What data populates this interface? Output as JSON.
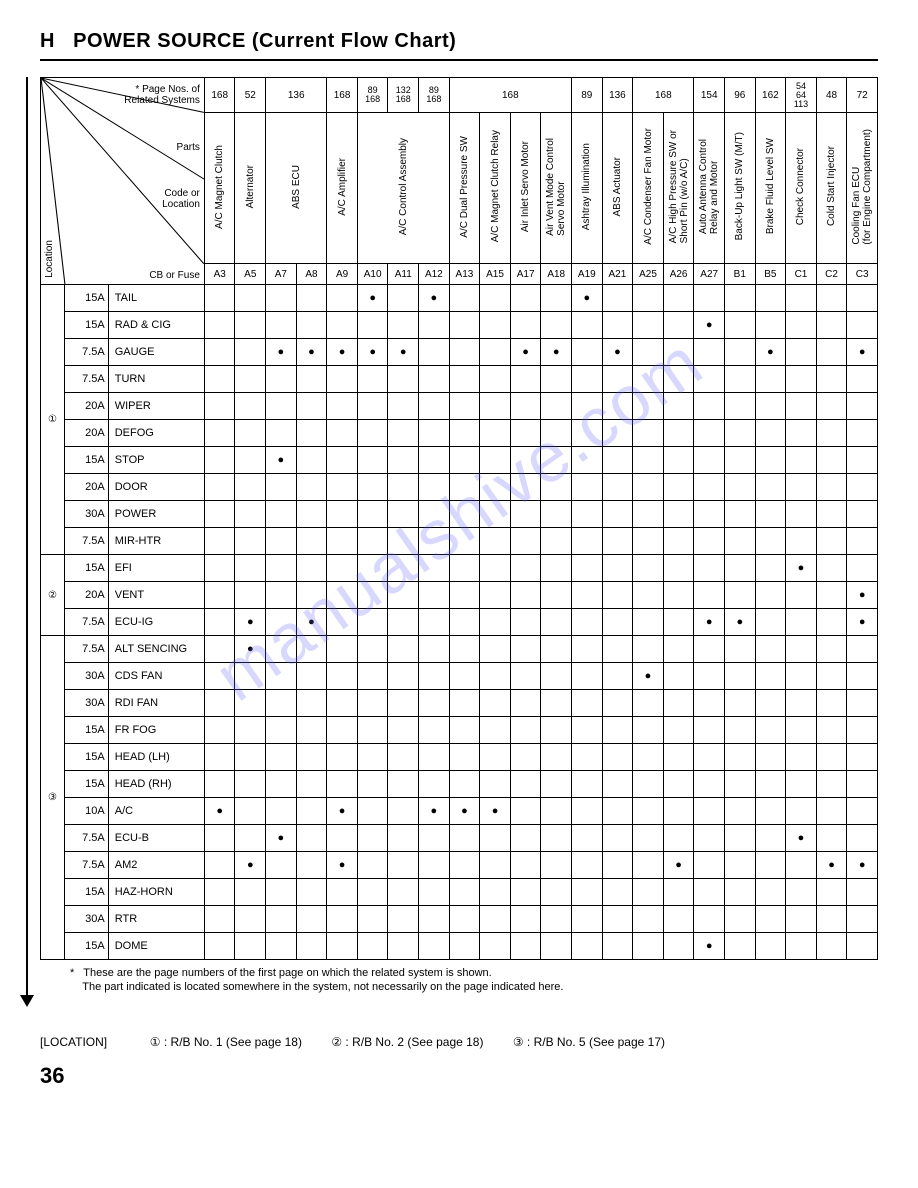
{
  "heading_prefix": "H",
  "heading_title": "POWER SOURCE (Current Flow Chart)",
  "header_labels": {
    "page_nos": "* Page Nos. of\nRelated Systems",
    "parts": "Parts",
    "code_or_location": "Code or\nLocation",
    "location": "Location",
    "cb_or_fuse": "CB or Fuse"
  },
  "columns": [
    {
      "page": "168",
      "label": "A/C Magnet Clutch",
      "code": "A3"
    },
    {
      "page": "52",
      "label": "Alternator",
      "code": "A5"
    },
    {
      "page": "136",
      "span": 2,
      "labels": [
        "ABS ECU"
      ],
      "codes": [
        "A7",
        "A8"
      ]
    },
    {
      "page": "168",
      "label": "A/C Amplifier",
      "code": "A9"
    },
    {
      "page": "89\n168",
      "span": 3,
      "pages_multi": [
        "89",
        "132",
        "89"
      ],
      "pages_multi2": [
        "168",
        "168",
        "168"
      ],
      "labels_single": "A/C Control Assembly",
      "codes": [
        "A10",
        "A11",
        "A12"
      ]
    },
    {
      "page": "168",
      "span": 4,
      "labels": [
        "A/C Dual Pressure SW",
        "A/C Magnet Clutch Relay",
        "Air Inlet Servo Motor",
        "Air Vent Mode Control\nServo Motor"
      ],
      "codes": [
        "A13",
        "A15",
        "A17",
        "A18"
      ]
    },
    {
      "page": "89",
      "label": "Ashtray Illumination",
      "code": "A19"
    },
    {
      "page": "136",
      "label": "ABS Actuator",
      "code": "A21"
    },
    {
      "page": "168",
      "span": 2,
      "labels": [
        "A/C Condenser Fan Motor",
        "A/C High Pressure SW or\nShort Pin (w/o A/C)"
      ],
      "codes": [
        "A25",
        "A26"
      ]
    },
    {
      "page": "154",
      "label": "Auto Antenna Control\nRelay and Motor",
      "code": "A27"
    },
    {
      "page": "96",
      "label": "Back-Up Light SW (M/T)",
      "code": "B1"
    },
    {
      "page": "162",
      "label": "Brake Fluid Level SW",
      "code": "B5"
    },
    {
      "page": "54\n64\n113",
      "label": "Check Connector",
      "code": "C1"
    },
    {
      "page": "48",
      "label": "Cold Start Injector",
      "code": "C2"
    },
    {
      "page": "72",
      "label": "Cooling Fan ECU\n(for Engine Compartment)",
      "code": "C3"
    }
  ],
  "pages_flat": [
    "168",
    "52",
    "136",
    "168",
    "89\n168",
    "132\n168",
    "89\n168",
    "168",
    "89",
    "136",
    "168",
    "154",
    "96",
    "162",
    "54\n64\n113",
    "48",
    "72"
  ],
  "parts_flat": [
    "A/C Magnet Clutch",
    "Alternator",
    "ABS ECU",
    "ABS ECU",
    "A/C Amplifier",
    "A/C Control Assembly",
    "A/C Control Assembly",
    "A/C Control Assembly",
    "A/C Dual Pressure SW",
    "A/C Magnet Clutch Relay",
    "Air Inlet Servo Motor",
    "Air Vent Mode Control\nServo Motor",
    "Ashtray Illumination",
    "ABS Actuator",
    "A/C Condenser Fan Motor",
    "A/C High Pressure SW or\nShort Pin (w/o A/C)",
    "Auto Antenna Control\nRelay and Motor",
    "Back-Up Light SW (M/T)",
    "Brake Fluid Level SW",
    "Check Connector",
    "Cold Start Injector",
    "Cooling Fan ECU\n(for Engine Compartment)"
  ],
  "codes_flat": [
    "A3",
    "A5",
    "A7",
    "A8",
    "A9",
    "A10",
    "A11",
    "A12",
    "A13",
    "A15",
    "A17",
    "A18",
    "A19",
    "A21",
    "A25",
    "A26",
    "A27",
    "B1",
    "B5",
    "C1",
    "C2",
    "C3"
  ],
  "groups": [
    {
      "loc": "①",
      "rows": [
        {
          "amps": "15A",
          "name": "TAIL",
          "dots": [
            "A10",
            "A12",
            "A19"
          ]
        },
        {
          "amps": "15A",
          "name": "RAD & CIG",
          "dots": [
            "A27"
          ]
        },
        {
          "amps": "7.5A",
          "name": "GAUGE",
          "dots": [
            "A7",
            "A8",
            "A9",
            "A10",
            "A11",
            "A17",
            "A18",
            "A21",
            "B5",
            "C3"
          ]
        },
        {
          "amps": "7.5A",
          "name": "TURN",
          "dots": []
        },
        {
          "amps": "20A",
          "name": "WIPER",
          "dots": []
        },
        {
          "amps": "20A",
          "name": "DEFOG",
          "dots": []
        },
        {
          "amps": "15A",
          "name": "STOP",
          "dots": [
            "A7"
          ]
        },
        {
          "amps": "20A",
          "name": "DOOR",
          "dots": []
        },
        {
          "amps": "30A",
          "name": "POWER",
          "dots": []
        },
        {
          "amps": "7.5A",
          "name": "MIR-HTR",
          "dots": []
        }
      ]
    },
    {
      "loc": "②",
      "rows": [
        {
          "amps": "15A",
          "name": "EFI",
          "dots": [
            "C1"
          ]
        },
        {
          "amps": "20A",
          "name": "VENT",
          "dots": [
            "C3"
          ]
        },
        {
          "amps": "7.5A",
          "name": "ECU-IG",
          "dots": [
            "A5",
            "A8",
            "A27",
            "B1",
            "C3"
          ]
        }
      ]
    },
    {
      "loc": "③",
      "rows": [
        {
          "amps": "7.5A",
          "name": "ALT SENCING",
          "dots": [
            "A5"
          ]
        },
        {
          "amps": "30A",
          "name": "CDS FAN",
          "dots": [
            "A25"
          ]
        },
        {
          "amps": "30A",
          "name": "RDI FAN",
          "dots": []
        },
        {
          "amps": "15A",
          "name": "FR FOG",
          "dots": []
        },
        {
          "amps": "15A",
          "name": "HEAD (LH)",
          "dots": []
        },
        {
          "amps": "15A",
          "name": "HEAD (RH)",
          "dots": []
        },
        {
          "amps": "10A",
          "name": "A/C",
          "dots": [
            "A3",
            "A9",
            "A12",
            "A13",
            "A15"
          ]
        },
        {
          "amps": "7.5A",
          "name": "ECU-B",
          "dots": [
            "A7",
            "C1"
          ]
        },
        {
          "amps": "7.5A",
          "name": "AM2",
          "dots": [
            "A5",
            "A9",
            "A26",
            "C2",
            "C3"
          ]
        },
        {
          "amps": "15A",
          "name": "HAZ-HORN",
          "dots": []
        },
        {
          "amps": "30A",
          "name": "RTR",
          "dots": []
        },
        {
          "amps": "15A",
          "name": "DOME",
          "dots": [
            "A27"
          ]
        }
      ]
    }
  ],
  "footnote_star": "*",
  "footnote1": "These are the page numbers of the first page on which the related system is shown.",
  "footnote2": "The part indicated is located somewhere in the system, not necessarily on the page indicated here.",
  "location_label": "[LOCATION]",
  "legend": [
    "① : R/B No. 1 (See page 18)",
    "② : R/B No. 2 (See page 18)",
    "③ : R/B No. 5 (See page 17)"
  ],
  "page_number": "36",
  "watermark": "manualshive.com",
  "page_spans": [
    {
      "text": "168",
      "span": 1
    },
    {
      "text": "52",
      "span": 1
    },
    {
      "text": "136",
      "span": 2
    },
    {
      "text": "168",
      "span": 1
    },
    {
      "stack": [
        "89",
        "168"
      ],
      "span": 1
    },
    {
      "stack": [
        "132",
        "168"
      ],
      "span": 1
    },
    {
      "stack": [
        "89",
        "168"
      ],
      "span": 1
    },
    {
      "text": "168",
      "span": 4
    },
    {
      "text": "89",
      "span": 1
    },
    {
      "text": "136",
      "span": 1
    },
    {
      "text": "168",
      "span": 2
    },
    {
      "text": "154",
      "span": 1
    },
    {
      "text": "96",
      "span": 1
    },
    {
      "text": "162",
      "span": 1
    },
    {
      "stack": [
        "54",
        "64",
        "113"
      ],
      "span": 1
    },
    {
      "text": "48",
      "span": 1
    },
    {
      "text": "72",
      "span": 1
    }
  ],
  "parts_spans": [
    {
      "label": "A/C Magnet Clutch",
      "span": 1
    },
    {
      "label": "Alternator",
      "span": 1
    },
    {
      "label": "ABS ECU",
      "span": 2
    },
    {
      "label": "A/C Amplifier",
      "span": 1
    },
    {
      "label": "A/C Control Assembly",
      "span": 3
    },
    {
      "label": "A/C Dual Pressure SW",
      "span": 1
    },
    {
      "label": "A/C Magnet Clutch Relay",
      "span": 1
    },
    {
      "label": "Air Inlet Servo Motor",
      "span": 1
    },
    {
      "label": "Air Vent Mode Control\nServo Motor",
      "span": 1
    },
    {
      "label": "Ashtray Illumination",
      "span": 1
    },
    {
      "label": "ABS Actuator",
      "span": 1
    },
    {
      "label": "A/C Condenser Fan Motor",
      "span": 1
    },
    {
      "label": "A/C High Pressure SW or\nShort Pin (w/o A/C)",
      "span": 1
    },
    {
      "label": "Auto Antenna Control\nRelay and Motor",
      "span": 1
    },
    {
      "label": "Back-Up Light SW (M/T)",
      "span": 1
    },
    {
      "label": "Brake Fluid Level SW",
      "span": 1
    },
    {
      "label": "Check Connector",
      "span": 1
    },
    {
      "label": "Cold Start Injector",
      "span": 1
    },
    {
      "label": "Cooling Fan ECU\n(for Engine Compartment)",
      "span": 1
    }
  ],
  "colors": {
    "border": "#000000",
    "text": "#000000",
    "watermark": "rgba(100,100,255,0.25)",
    "background": "#ffffff"
  }
}
